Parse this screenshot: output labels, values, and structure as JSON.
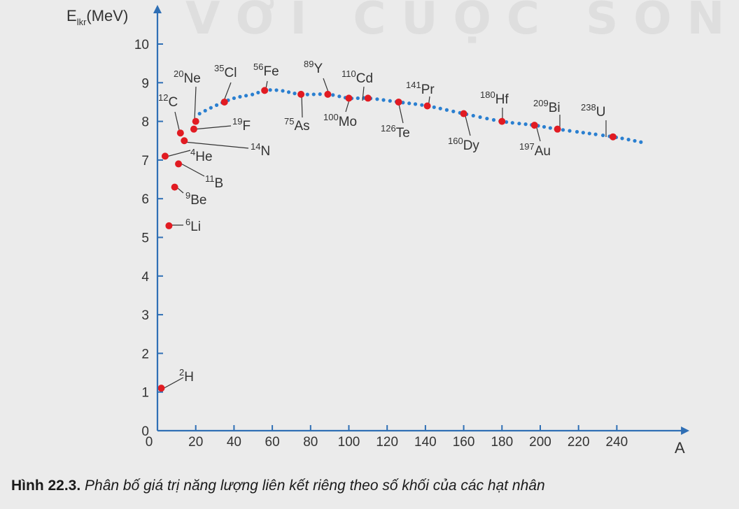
{
  "watermark": "VỚI CUỘC SỐNG",
  "caption": {
    "number": "Hình 22.3.",
    "text": "Phân bố giá trị năng lượng liên kết riêng theo số khối của các hạt nhân"
  },
  "colors": {
    "axis": "#2f6fb5",
    "point": "#e11b22",
    "curve": "#2a7fd0",
    "text": "#333333"
  },
  "chart_data": {
    "type": "scatter",
    "title": "",
    "xlabel": "A",
    "ylabel": {
      "main": "E",
      "sub": "lkr",
      "unit": "(MeV)"
    },
    "xlim": [
      0,
      260
    ],
    "ylim": [
      0,
      10
    ],
    "xticks": [
      0,
      20,
      40,
      60,
      80,
      100,
      120,
      140,
      160,
      180,
      200,
      220,
      240
    ],
    "yticks": [
      0,
      1,
      2,
      3,
      4,
      5,
      6,
      7,
      8,
      9,
      10
    ],
    "grid": false,
    "points": [
      {
        "A": 2,
        "E": 1.1,
        "mass": "2",
        "symbol": "H"
      },
      {
        "A": 6,
        "E": 5.3,
        "mass": "6",
        "symbol": "Li"
      },
      {
        "A": 9,
        "E": 6.3,
        "mass": "9",
        "symbol": "Be"
      },
      {
        "A": 11,
        "E": 6.9,
        "mass": "11",
        "symbol": "B"
      },
      {
        "A": 4,
        "E": 7.1,
        "mass": "4",
        "symbol": "He"
      },
      {
        "A": 12,
        "E": 7.7,
        "mass": "12",
        "symbol": "C"
      },
      {
        "A": 14,
        "E": 7.5,
        "mass": "14",
        "symbol": "N"
      },
      {
        "A": 19,
        "E": 7.8,
        "mass": "19",
        "symbol": "F"
      },
      {
        "A": 20,
        "E": 8.0,
        "mass": "20",
        "symbol": "Ne"
      },
      {
        "A": 35,
        "E": 8.5,
        "mass": "35",
        "symbol": "Cl"
      },
      {
        "A": 56,
        "E": 8.8,
        "mass": "56",
        "symbol": "Fe"
      },
      {
        "A": 75,
        "E": 8.7,
        "mass": "75",
        "symbol": "As"
      },
      {
        "A": 89,
        "E": 8.7,
        "mass": "89",
        "symbol": "Y"
      },
      {
        "A": 100,
        "E": 8.6,
        "mass": "100",
        "symbol": "Mo"
      },
      {
        "A": 110,
        "E": 8.6,
        "mass": "110",
        "symbol": "Cd"
      },
      {
        "A": 126,
        "E": 8.5,
        "mass": "126",
        "symbol": "Te"
      },
      {
        "A": 141,
        "E": 8.4,
        "mass": "141",
        "symbol": "Pr"
      },
      {
        "A": 160,
        "E": 8.2,
        "mass": "160",
        "symbol": "Dy"
      },
      {
        "A": 180,
        "E": 8.0,
        "mass": "180",
        "symbol": "Hf"
      },
      {
        "A": 197,
        "E": 7.9,
        "mass": "197",
        "symbol": "Au"
      },
      {
        "A": 209,
        "E": 7.8,
        "mass": "209",
        "symbol": "Bi"
      },
      {
        "A": 238,
        "E": 7.6,
        "mass": "238",
        "symbol": "U"
      }
    ],
    "trend_curve": {
      "x": [
        22,
        30,
        40,
        50,
        56,
        64,
        75,
        89,
        100,
        110,
        126,
        141,
        160,
        180,
        197,
        209,
        238,
        254
      ],
      "y": [
        8.2,
        8.4,
        8.6,
        8.7,
        8.8,
        8.8,
        8.7,
        8.7,
        8.6,
        8.6,
        8.5,
        8.4,
        8.2,
        8.0,
        7.9,
        7.8,
        7.6,
        7.45
      ]
    }
  }
}
